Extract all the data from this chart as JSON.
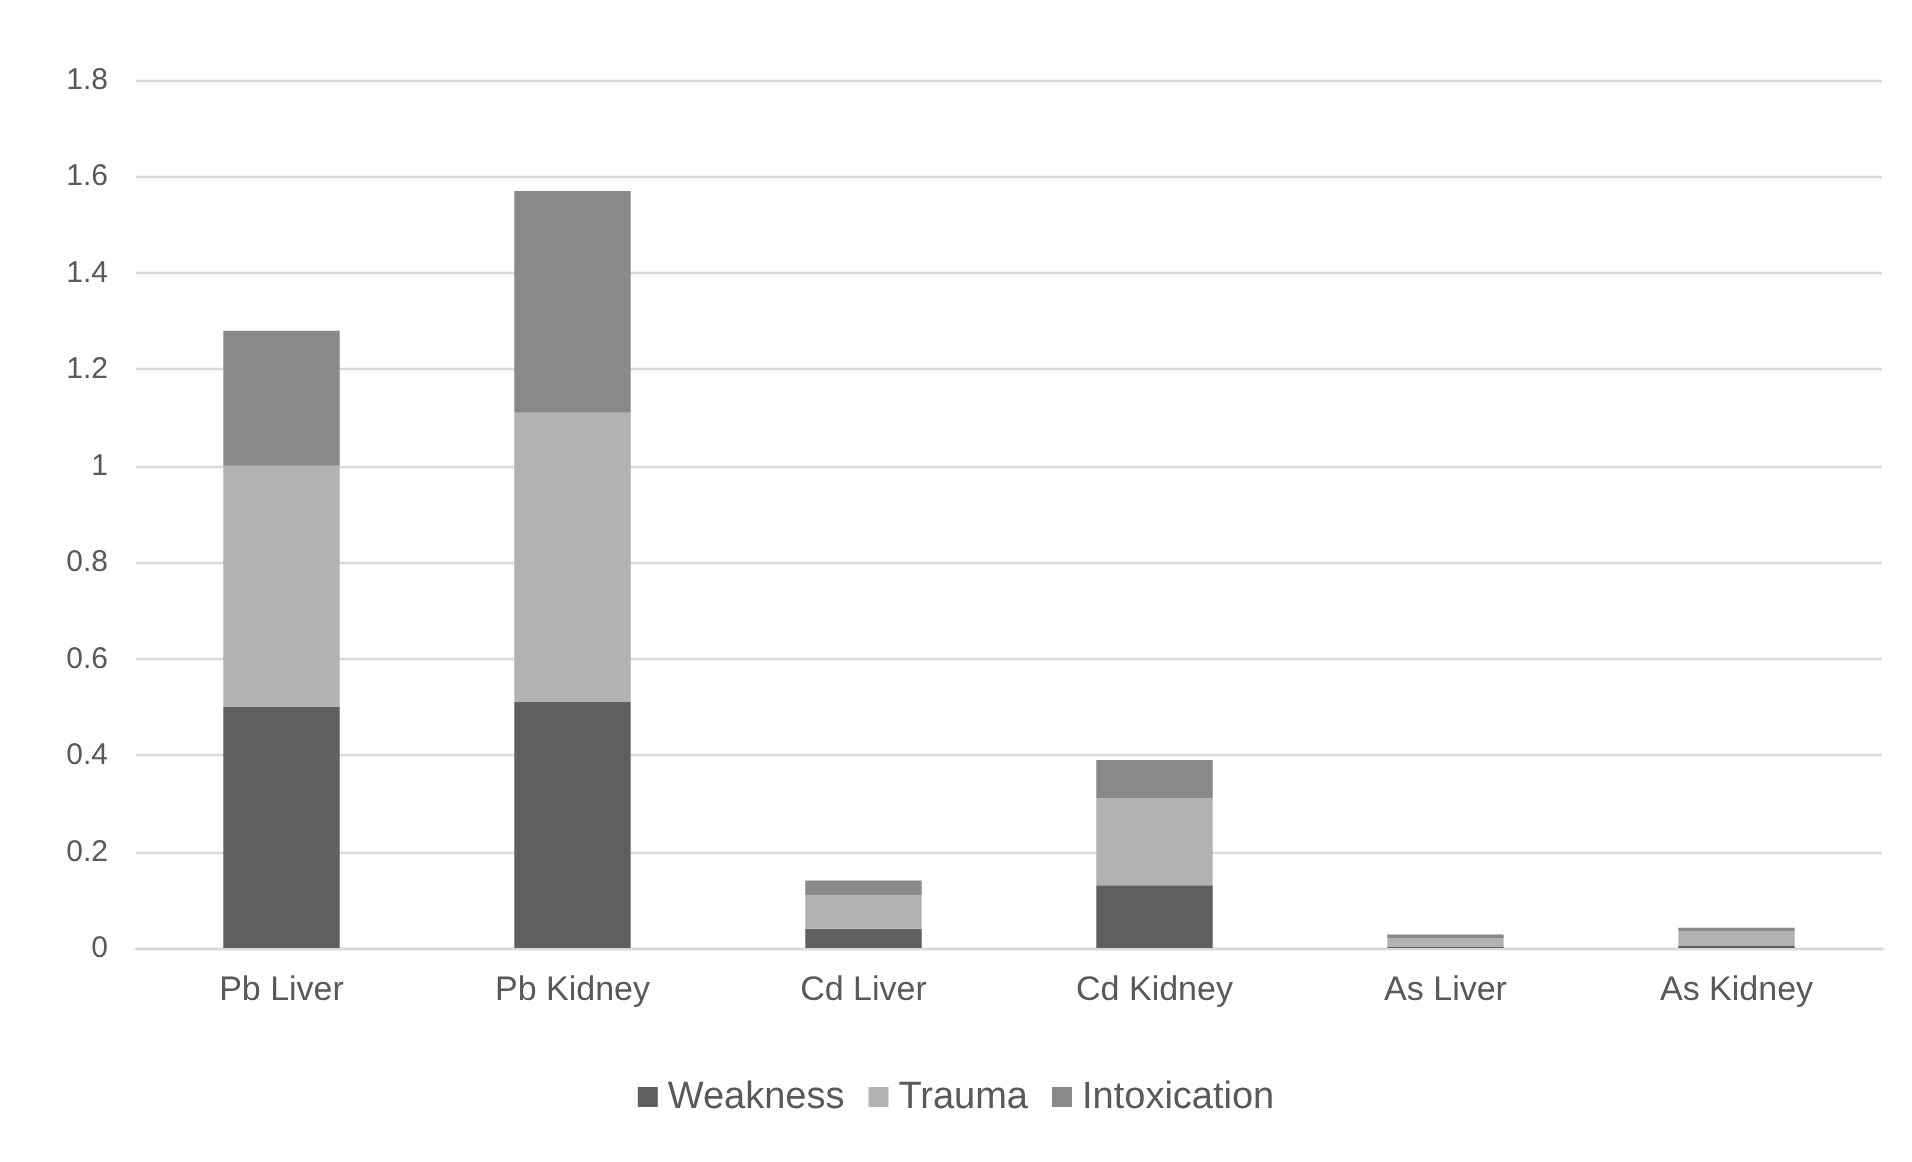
{
  "chart_data": {
    "type": "bar",
    "stacked": true,
    "categories": [
      "Pb Liver",
      "Pb Kidney",
      "Cd Liver",
      "Cd Kidney",
      "As Liver",
      "As Kidney"
    ],
    "series": [
      {
        "name": "Weakness",
        "color": "#5f5f5f",
        "values": [
          0.5,
          0.51,
          0.04,
          0.13,
          0.003,
          0.005
        ]
      },
      {
        "name": "Trauma",
        "color": "#b2b2b2",
        "values": [
          0.5,
          0.6,
          0.07,
          0.18,
          0.017,
          0.03
        ]
      },
      {
        "name": "Intoxication",
        "color": "#898989",
        "values": [
          0.28,
          0.46,
          0.03,
          0.08,
          0.008,
          0.007
        ]
      }
    ],
    "ylim": [
      0,
      1.8
    ],
    "yticks": [
      0,
      0.2,
      0.4,
      0.6,
      0.8,
      1,
      1.2,
      1.4,
      1.6,
      1.8
    ],
    "grid": "y",
    "legend": "bottom"
  }
}
